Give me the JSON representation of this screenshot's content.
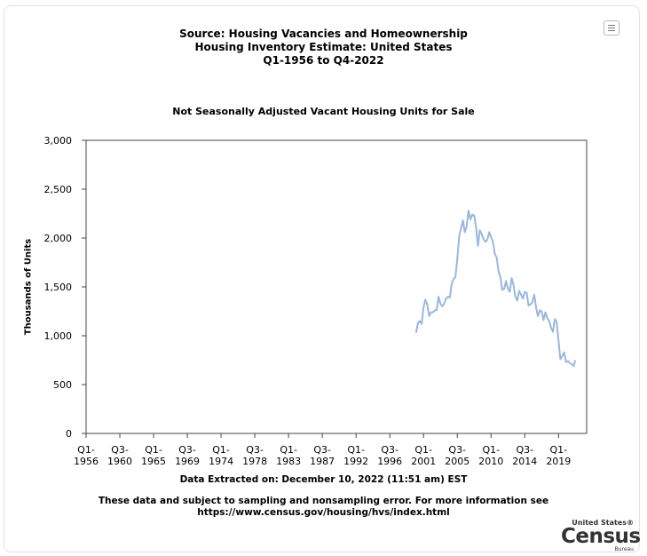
{
  "header": {
    "title_line1": "Source: Housing Vacancies and Homeownership",
    "title_line2": "Housing Inventory Estimate: United States",
    "title_line3": "Q1-1956 to Q4-2022"
  },
  "chart_data": {
    "type": "line",
    "title": "Not Seasonally Adjusted Vacant Housing Units for Sale",
    "ylabel": "Thousands of Units",
    "xlabel": "",
    "ylim": [
      0,
      3000
    ],
    "yticks": [
      "0",
      "500",
      "1,000",
      "1,500",
      "2,000",
      "2,500",
      "3,000"
    ],
    "ytick_values": [
      0,
      500,
      1000,
      1500,
      2000,
      2500,
      3000
    ],
    "x_range": [
      1956.0,
      2022.75
    ],
    "xticks": [
      {
        "q": "Q1-",
        "y": "1956",
        "x": 1956.0
      },
      {
        "q": "Q3-",
        "y": "1960",
        "x": 1960.5
      },
      {
        "q": "Q1-",
        "y": "1965",
        "x": 1965.0
      },
      {
        "q": "Q3-",
        "y": "1969",
        "x": 1969.5
      },
      {
        "q": "Q1-",
        "y": "1974",
        "x": 1974.0
      },
      {
        "q": "Q3-",
        "y": "1978",
        "x": 1978.5
      },
      {
        "q": "Q1-",
        "y": "1983",
        "x": 1983.0
      },
      {
        "q": "Q3-",
        "y": "1987",
        "x": 1987.5
      },
      {
        "q": "Q1-",
        "y": "1992",
        "x": 1992.0
      },
      {
        "q": "Q3-",
        "y": "1996",
        "x": 1996.5
      },
      {
        "q": "Q1-",
        "y": "2001",
        "x": 2001.0
      },
      {
        "q": "Q3-",
        "y": "2005",
        "x": 2005.5
      },
      {
        "q": "Q1-",
        "y": "2010",
        "x": 2010.0
      },
      {
        "q": "Q3-",
        "y": "2014",
        "x": 2014.5
      },
      {
        "q": "Q1-",
        "y": "2019",
        "x": 2019.0
      }
    ],
    "grid": false,
    "line_color": "#9bb7d8",
    "series": [
      {
        "name": "",
        "start_period": "Q1-2000",
        "values": [
          1030,
          1130,
          1150,
          1120,
          1290,
          1370,
          1320,
          1200,
          1240,
          1240,
          1260,
          1260,
          1400,
          1330,
          1300,
          1330,
          1380,
          1400,
          1390,
          1530,
          1580,
          1600,
          1780,
          2020,
          2100,
          2180,
          2060,
          2120,
          2280,
          2190,
          2240,
          2230,
          2110,
          1920,
          2080,
          2040,
          1990,
          1960,
          1980,
          2060,
          2010,
          1960,
          1840,
          1800,
          1660,
          1600,
          1470,
          1480,
          1560,
          1480,
          1450,
          1590,
          1520,
          1400,
          1360,
          1460,
          1420,
          1380,
          1450,
          1440,
          1310,
          1320,
          1340,
          1420,
          1290,
          1200,
          1260,
          1250,
          1160,
          1240,
          1180,
          1150,
          1080,
          1040,
          1170,
          1140,
          950,
          760,
          790,
          830,
          730,
          740,
          720,
          710,
          690,
          750
        ]
      }
    ]
  },
  "footer": {
    "extracted": "Data Extracted on: December 10, 2022 (11:51 am) EST",
    "disclaimer_line1": "These data and subject to sampling and nonsampling error. For more information see",
    "disclaimer_line2": "https://www.census.gov/housing/hvs/index.html"
  },
  "logo": {
    "line1": "United States®",
    "line2": "Census",
    "line3": "Bureau"
  }
}
